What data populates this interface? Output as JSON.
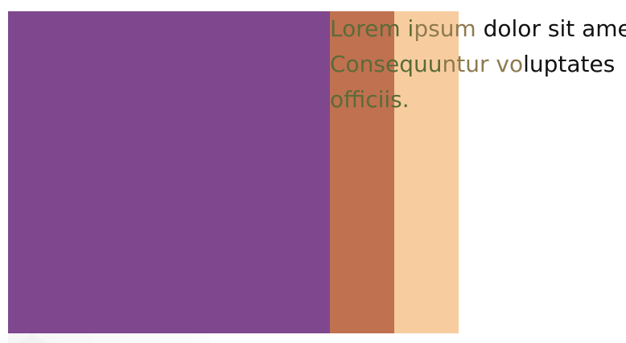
{
  "colors": {
    "purple": "#7F488E",
    "rust": "#C07150",
    "peach": "#F7CDA0",
    "text": "#111111",
    "overlay_text_dark": "#5B6B38",
    "overlay_text_light": "#8E7A4E"
  },
  "paragraph": {
    "line1": "Lorem ipsum dolor sit amet",
    "line2": "Consequuntur voluptates",
    "line3": "officiis."
  }
}
